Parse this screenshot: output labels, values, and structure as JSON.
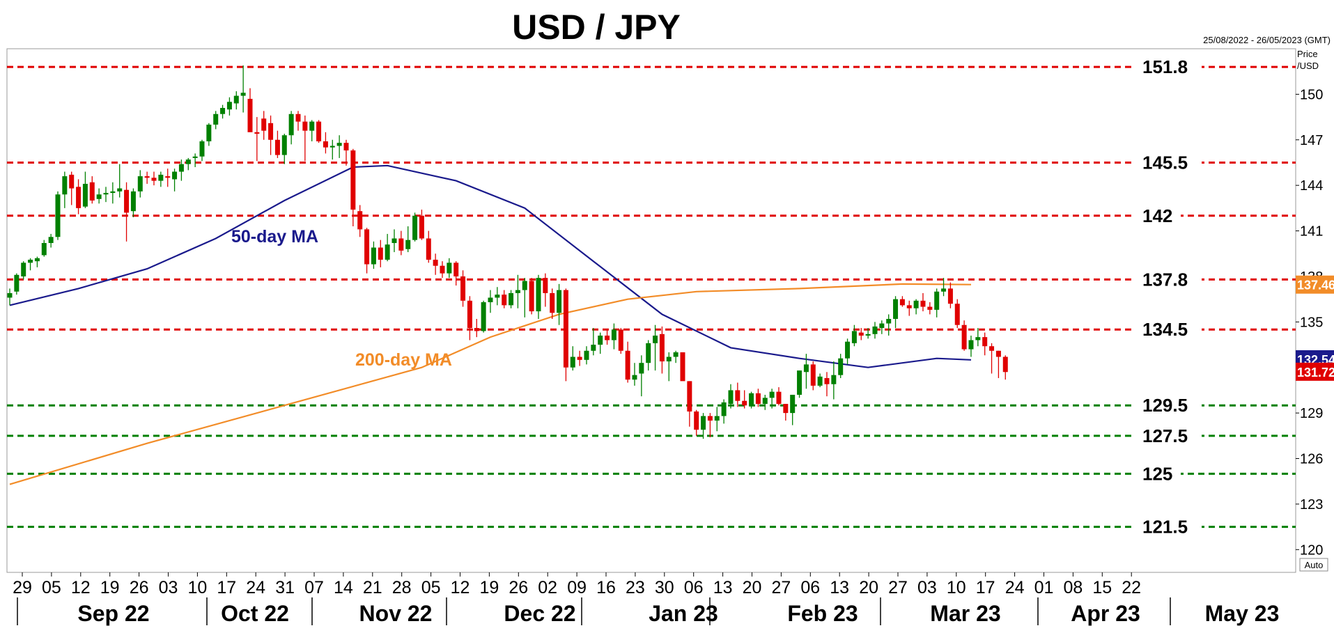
{
  "chart_data": {
    "type": "candlestick",
    "title": "USD / JPY",
    "date_range": "25/08/2022 - 26/05/2023 (GMT)",
    "y_unit_label": [
      "Price",
      "/USD"
    ],
    "auto_label": "Auto",
    "ylim": [
      118.5,
      153
    ],
    "y_ticks": [
      150,
      147,
      144,
      141,
      138,
      135,
      129,
      126,
      123,
      120
    ],
    "x_tick_labels": [
      "29",
      "05",
      "12",
      "19",
      "26",
      "03",
      "10",
      "17",
      "24",
      "31",
      "07",
      "14",
      "21",
      "28",
      "05",
      "12",
      "19",
      "26",
      "02",
      "09",
      "16",
      "23",
      "30",
      "06",
      "13",
      "20",
      "27",
      "06",
      "13",
      "20",
      "27",
      "03",
      "10",
      "17",
      "24",
      "01",
      "08",
      "15",
      "22"
    ],
    "months": [
      "Sep 22",
      "Oct 22",
      "Nov 22",
      "Dec 22",
      "Jan 23",
      "Feb 23",
      "Mar 23",
      "Apr 23",
      "May 23"
    ],
    "levels": [
      {
        "value": 151.8,
        "label": "151.8",
        "color": "#E00000"
      },
      {
        "value": 145.5,
        "label": "145.5",
        "color": "#E00000"
      },
      {
        "value": 142,
        "label": "142",
        "color": "#E00000"
      },
      {
        "value": 137.8,
        "label": "137.8",
        "color": "#E00000"
      },
      {
        "value": 134.5,
        "label": "134.5",
        "color": "#E00000"
      },
      {
        "value": 129.5,
        "label": "129.5",
        "color": "#008000"
      },
      {
        "value": 127.5,
        "label": "127.5",
        "color": "#008000"
      },
      {
        "value": 125,
        "label": "125",
        "color": "#008000"
      },
      {
        "value": 121.5,
        "label": "121.5",
        "color": "#008000"
      }
    ],
    "moving_averages": [
      {
        "name": "50-day MA",
        "color": "#1A1A8C",
        "last": "132.54",
        "points": [
          [
            0,
            136.1
          ],
          [
            10,
            137.2
          ],
          [
            20,
            138.5
          ],
          [
            30,
            140.5
          ],
          [
            40,
            143.0
          ],
          [
            50,
            145.2
          ],
          [
            55,
            145.3
          ],
          [
            65,
            144.3
          ],
          [
            75,
            142.5
          ],
          [
            85,
            139.0
          ],
          [
            95,
            135.5
          ],
          [
            105,
            133.3
          ],
          [
            115,
            132.6
          ],
          [
            125,
            132.0
          ],
          [
            135,
            132.6
          ],
          [
            140,
            132.5
          ]
        ]
      },
      {
        "name": "200-day MA",
        "color": "#F28C28",
        "last": "137.46",
        "points": [
          [
            0,
            124.3
          ],
          [
            20,
            127.0
          ],
          [
            40,
            129.5
          ],
          [
            60,
            132.0
          ],
          [
            70,
            134.0
          ],
          [
            80,
            135.5
          ],
          [
            90,
            136.5
          ],
          [
            100,
            137.0
          ],
          [
            115,
            137.2
          ],
          [
            130,
            137.5
          ],
          [
            140,
            137.46
          ]
        ]
      }
    ],
    "last_price": "131.72",
    "colors": {
      "up": "#008000",
      "down": "#E00000",
      "last_tag": "#E00000",
      "ma50_tag": "#1A1A8C",
      "ma200_tag": "#F28C28"
    },
    "ohlc": [
      [
        136.6,
        137.2,
        136.1,
        136.9
      ],
      [
        137.0,
        138.2,
        136.8,
        138.1
      ],
      [
        138.0,
        139.0,
        137.8,
        138.9
      ],
      [
        138.9,
        139.2,
        138.4,
        139.1
      ],
      [
        139.0,
        139.3,
        138.6,
        139.2
      ],
      [
        139.4,
        140.4,
        139.3,
        140.2
      ],
      [
        140.2,
        140.8,
        139.9,
        140.6
      ],
      [
        140.6,
        143.6,
        140.4,
        143.4
      ],
      [
        143.4,
        144.9,
        142.5,
        144.6
      ],
      [
        144.7,
        144.9,
        142.7,
        143.8
      ],
      [
        143.9,
        144.4,
        142.1,
        142.5
      ],
      [
        142.6,
        144.9,
        142.5,
        144.1
      ],
      [
        144.2,
        144.6,
        142.8,
        143.0
      ],
      [
        143.1,
        143.8,
        142.8,
        143.4
      ],
      [
        143.4,
        143.9,
        142.9,
        143.5
      ],
      [
        143.5,
        144.2,
        142.8,
        143.6
      ],
      [
        143.6,
        145.4,
        143.2,
        143.8
      ],
      [
        143.7,
        144.2,
        140.3,
        142.2
      ],
      [
        142.3,
        143.8,
        141.9,
        143.6
      ],
      [
        143.6,
        145.0,
        143.2,
        144.6
      ],
      [
        144.6,
        144.9,
        144.1,
        144.5
      ],
      [
        144.5,
        144.9,
        144.0,
        144.3
      ],
      [
        144.3,
        144.9,
        143.9,
        144.7
      ],
      [
        144.6,
        145.1,
        143.9,
        144.5
      ],
      [
        144.4,
        145.1,
        143.6,
        144.9
      ],
      [
        144.9,
        145.7,
        144.3,
        145.4
      ],
      [
        145.4,
        145.8,
        145.0,
        145.7
      ],
      [
        145.8,
        146.1,
        145.2,
        145.9
      ],
      [
        145.9,
        147.0,
        145.6,
        146.9
      ],
      [
        146.9,
        148.1,
        146.6,
        148.0
      ],
      [
        148.0,
        148.9,
        147.7,
        148.7
      ],
      [
        148.7,
        149.3,
        148.4,
        149.1
      ],
      [
        149.0,
        149.8,
        148.6,
        149.5
      ],
      [
        149.4,
        150.2,
        149.0,
        149.9
      ],
      [
        149.9,
        151.9,
        148.8,
        150.1
      ],
      [
        149.7,
        150.4,
        147.6,
        147.5
      ],
      [
        147.5,
        148.5,
        145.6,
        147.4
      ],
      [
        148.4,
        148.9,
        147.0,
        147.6
      ],
      [
        148.1,
        148.6,
        146.0,
        147.0
      ],
      [
        147.0,
        147.6,
        145.8,
        146.0
      ],
      [
        146.0,
        147.4,
        145.4,
        147.3
      ],
      [
        147.3,
        148.9,
        146.7,
        148.7
      ],
      [
        148.7,
        148.9,
        147.6,
        148.2
      ],
      [
        148.2,
        148.6,
        145.6,
        147.6
      ],
      [
        147.6,
        148.3,
        146.9,
        148.2
      ],
      [
        148.2,
        148.3,
        146.8,
        146.9
      ],
      [
        146.9,
        147.5,
        146.1,
        146.5
      ],
      [
        146.5,
        147.0,
        145.7,
        146.6
      ],
      [
        146.6,
        147.3,
        145.8,
        146.8
      ],
      [
        146.8,
        147.0,
        145.3,
        146.3
      ],
      [
        146.3,
        146.4,
        141.3,
        142.4
      ],
      [
        142.3,
        142.7,
        140.6,
        141.1
      ],
      [
        141.1,
        141.2,
        138.2,
        138.8
      ],
      [
        138.8,
        140.3,
        138.5,
        139.9
      ],
      [
        139.9,
        140.4,
        138.6,
        139.1
      ],
      [
        139.1,
        140.8,
        139.0,
        140.1
      ],
      [
        140.2,
        141.1,
        139.6,
        140.5
      ],
      [
        140.5,
        141.0,
        139.4,
        139.7
      ],
      [
        139.8,
        141.3,
        139.6,
        140.4
      ],
      [
        140.4,
        142.2,
        140.3,
        142.0
      ],
      [
        142.0,
        142.4,
        140.4,
        140.5
      ],
      [
        140.5,
        141.0,
        138.9,
        139.1
      ],
      [
        139.1,
        139.5,
        138.1,
        138.7
      ],
      [
        138.7,
        139.0,
        137.9,
        138.2
      ],
      [
        138.2,
        139.2,
        137.9,
        138.9
      ],
      [
        138.9,
        139.0,
        137.4,
        138.0
      ],
      [
        138.0,
        138.4,
        136.0,
        136.4
      ],
      [
        136.4,
        136.7,
        133.8,
        134.6
      ],
      [
        134.6,
        135.2,
        134.0,
        134.4
      ],
      [
        134.4,
        136.4,
        134.3,
        136.3
      ],
      [
        136.3,
        137.1,
        135.6,
        136.6
      ],
      [
        136.6,
        137.3,
        136.1,
        136.8
      ],
      [
        136.8,
        137.1,
        135.9,
        136.1
      ],
      [
        136.1,
        137.1,
        135.9,
        136.9
      ],
      [
        136.9,
        138.1,
        135.9,
        137.1
      ],
      [
        137.1,
        137.9,
        135.3,
        137.7
      ],
      [
        137.7,
        137.9,
        135.5,
        135.7
      ],
      [
        135.7,
        138.1,
        135.2,
        137.9
      ],
      [
        137.9,
        138.2,
        136.0,
        136.9
      ],
      [
        136.9,
        137.2,
        135.2,
        135.6
      ],
      [
        135.6,
        137.5,
        134.8,
        137.1
      ],
      [
        137.1,
        137.2,
        131.1,
        132.0
      ],
      [
        132.0,
        133.4,
        131.8,
        132.7
      ],
      [
        132.7,
        133.1,
        132.1,
        132.5
      ],
      [
        132.5,
        133.4,
        132.2,
        133.1
      ],
      [
        133.1,
        134.6,
        132.8,
        133.5
      ],
      [
        133.5,
        134.3,
        132.9,
        134.1
      ],
      [
        134.1,
        134.5,
        133.5,
        133.8
      ],
      [
        133.8,
        134.9,
        133.2,
        134.5
      ],
      [
        134.5,
        134.6,
        132.9,
        133.1
      ],
      [
        133.1,
        133.7,
        131.0,
        131.2
      ],
      [
        131.2,
        132.3,
        130.8,
        131.5
      ],
      [
        131.6,
        132.8,
        130.1,
        132.3
      ],
      [
        132.3,
        133.8,
        131.8,
        133.6
      ],
      [
        133.6,
        134.8,
        131.8,
        134.1
      ],
      [
        134.2,
        134.7,
        131.6,
        132.4
      ],
      [
        132.4,
        133.0,
        131.1,
        132.7
      ],
      [
        132.7,
        133.1,
        132.3,
        133.0
      ],
      [
        133.0,
        133.0,
        131.3,
        131.1
      ],
      [
        131.1,
        131.1,
        128.1,
        129.1
      ],
      [
        129.1,
        129.2,
        127.5,
        127.9
      ],
      [
        127.9,
        129.0,
        127.3,
        128.8
      ],
      [
        128.8,
        129.0,
        127.4,
        128.5
      ],
      [
        128.5,
        129.4,
        127.8,
        128.8
      ],
      [
        128.8,
        129.9,
        128.3,
        129.7
      ],
      [
        129.6,
        130.9,
        129.3,
        130.5
      ],
      [
        130.5,
        131.0,
        129.4,
        129.8
      ],
      [
        129.8,
        130.5,
        129.3,
        129.5
      ],
      [
        129.5,
        130.4,
        129.3,
        130.3
      ],
      [
        130.3,
        130.6,
        129.4,
        129.6
      ],
      [
        129.6,
        130.2,
        129.2,
        130.0
      ],
      [
        130.0,
        130.6,
        129.3,
        130.4
      ],
      [
        130.4,
        130.7,
        129.5,
        129.6
      ],
      [
        129.6,
        129.6,
        128.5,
        129.0
      ],
      [
        129.0,
        130.2,
        128.2,
        130.2
      ],
      [
        130.2,
        131.8,
        130.0,
        131.8
      ],
      [
        131.7,
        132.9,
        130.6,
        132.2
      ],
      [
        132.2,
        132.4,
        130.5,
        130.8
      ],
      [
        130.8,
        131.6,
        130.7,
        131.4
      ],
      [
        131.3,
        131.7,
        130.1,
        130.9
      ],
      [
        130.9,
        132.4,
        129.9,
        131.5
      ],
      [
        131.5,
        132.9,
        131.3,
        132.6
      ],
      [
        132.6,
        133.9,
        132.2,
        133.7
      ],
      [
        133.6,
        134.8,
        133.4,
        134.4
      ],
      [
        134.3,
        134.6,
        133.8,
        134.1
      ],
      [
        134.1,
        134.6,
        133.9,
        134.2
      ],
      [
        134.2,
        135.0,
        133.9,
        134.7
      ],
      [
        134.6,
        135.1,
        134.2,
        134.9
      ],
      [
        134.9,
        135.5,
        134.1,
        135.2
      ],
      [
        135.2,
        136.7,
        134.6,
        136.5
      ],
      [
        136.5,
        136.7,
        136.0,
        136.1
      ],
      [
        136.1,
        136.4,
        135.4,
        135.9
      ],
      [
        135.9,
        136.5,
        135.5,
        136.4
      ],
      [
        136.4,
        136.9,
        135.7,
        136.0
      ],
      [
        136.0,
        136.3,
        135.5,
        135.8
      ],
      [
        135.8,
        137.2,
        135.3,
        137.0
      ],
      [
        137.0,
        137.9,
        136.7,
        137.2
      ],
      [
        137.2,
        137.6,
        135.9,
        136.2
      ],
      [
        136.2,
        136.5,
        134.6,
        134.8
      ],
      [
        134.8,
        135.1,
        133.1,
        133.2
      ],
      [
        133.2,
        134.1,
        132.7,
        133.8
      ],
      [
        133.8,
        134.6,
        133.4,
        134.0
      ],
      [
        134.0,
        134.3,
        132.8,
        133.4
      ],
      [
        133.4,
        133.6,
        131.6,
        133.1
      ],
      [
        133.1,
        133.1,
        131.3,
        132.7
      ],
      [
        132.7,
        132.8,
        131.2,
        131.7
      ]
    ]
  }
}
